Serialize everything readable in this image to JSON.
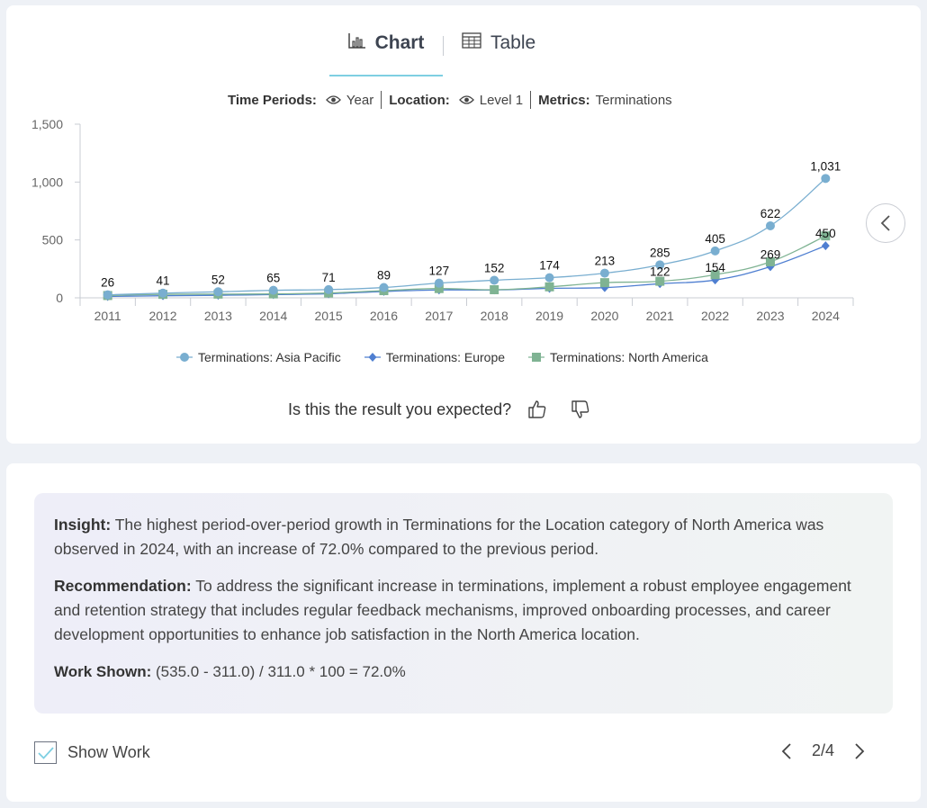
{
  "tabs": [
    {
      "label": "Chart",
      "icon": "bar-chart-icon",
      "active": true
    },
    {
      "label": "Table",
      "icon": "table-icon",
      "active": false
    }
  ],
  "filters": {
    "time_label": "Time Periods:",
    "time_value": "Year",
    "location_label": "Location:",
    "location_value": "Level 1",
    "metrics_label": "Metrics:",
    "metrics_value": "Terminations"
  },
  "chart_data": {
    "type": "line",
    "categories": [
      "2011",
      "2012",
      "2013",
      "2014",
      "2015",
      "2016",
      "2017",
      "2018",
      "2019",
      "2020",
      "2021",
      "2022",
      "2023",
      "2024"
    ],
    "ylim": [
      0,
      1500
    ],
    "yticks": [
      "0",
      "500",
      "1,000",
      "1,500"
    ],
    "grid": false,
    "legend_position": "bottom",
    "series": [
      {
        "name": "Terminations: Asia Pacific",
        "color": "#79aed0",
        "marker": "circle",
        "values": [
          26,
          41,
          52,
          65,
          71,
          89,
          127,
          152,
          174,
          213,
          285,
          405,
          622,
          1031
        ],
        "labels": [
          "26",
          "41",
          "52",
          "65",
          "71",
          "89",
          "127",
          "152",
          "174",
          "213",
          "285",
          "405",
          "622",
          "1,031"
        ]
      },
      {
        "name": "Terminations: Europe",
        "color": "#4f7fd1",
        "marker": "diamond",
        "values": [
          12,
          18,
          22,
          28,
          35,
          55,
          68,
          68,
          82,
          88,
          122,
          154,
          269,
          450
        ],
        "labels": [
          "",
          "",
          "",
          "",
          "",
          "",
          "",
          "",
          "",
          "",
          "122",
          "154",
          "269",
          "450"
        ]
      },
      {
        "name": "Terminations: North America",
        "color": "#7fb393",
        "marker": "square",
        "values": [
          20,
          30,
          32,
          34,
          42,
          62,
          80,
          70,
          95,
          131,
          143,
          200,
          311,
          535
        ],
        "labels": []
      }
    ]
  },
  "feedback": {
    "question": "Is this the result you expected?"
  },
  "insight": {
    "insight_label": "Insight:",
    "insight_text": " The highest period-over-period growth in Terminations for the Location category of North America was observed in 2024, with an increase of 72.0% compared to the previous period.",
    "recommendation_label": "Recommendation:",
    "recommendation_text": " To address the significant increase in terminations, implement a robust employee engagement and retention strategy that includes regular feedback mechanisms, improved onboarding processes, and career development opportunities to enhance job satisfaction in the North America location.",
    "work_label": "Work Shown:",
    "work_text": " (535.0 - 311.0) / 311.0 * 100 = 72.0%"
  },
  "show_work": {
    "label": "Show Work",
    "checked": true
  },
  "pager": {
    "text": "2/4"
  }
}
